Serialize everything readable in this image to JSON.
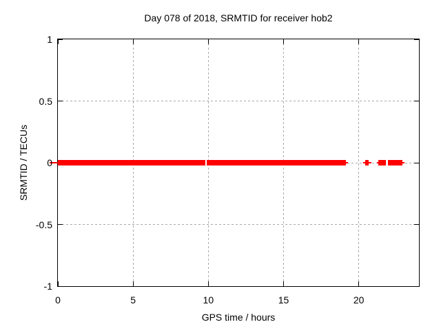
{
  "chart_data": {
    "type": "scatter",
    "title": "Day 078 of 2018, SRMTID for receiver hob2",
    "xlabel": "GPS time / hours",
    "ylabel": "SRMTID / TECUs",
    "xlim": [
      0,
      24
    ],
    "ylim": [
      -1,
      1
    ],
    "x_ticks": [
      {
        "value": 0,
        "label": "0"
      },
      {
        "value": 5,
        "label": "5"
      },
      {
        "value": 10,
        "label": "10"
      },
      {
        "value": 15,
        "label": "15"
      },
      {
        "value": 20,
        "label": "20"
      }
    ],
    "y_ticks": [
      {
        "value": 1,
        "label": "1"
      },
      {
        "value": 0.5,
        "label": "0.5"
      },
      {
        "value": 0,
        "label": "0"
      },
      {
        "value": -0.5,
        "label": "-0.5"
      },
      {
        "value": -1,
        "label": "-1"
      }
    ],
    "grid": true,
    "legend": "none",
    "series_value_tecus": 0,
    "colors": {
      "marker": "#ff0000",
      "grid": "#a8a8a8",
      "axis": "#000000",
      "background": "#ffffff"
    },
    "segments": [
      {
        "kind": "whisker",
        "x0": -0.55,
        "x1": 0
      },
      {
        "kind": "block",
        "x0": 0,
        "x1": 9.82
      },
      {
        "kind": "block",
        "x0": 9.89,
        "x1": 19.16
      },
      {
        "kind": "whisker",
        "x0": 19.16,
        "x1": 19.3
      },
      {
        "kind": "whisker",
        "x0": 20.3,
        "x1": 20.82
      },
      {
        "kind": "block",
        "x0": 20.43,
        "x1": 20.66
      },
      {
        "kind": "whisker",
        "x0": 21.19,
        "x1": 21.31
      },
      {
        "kind": "block",
        "x0": 21.31,
        "x1": 21.8
      },
      {
        "kind": "block",
        "x0": 21.93,
        "x1": 22.9
      },
      {
        "kind": "whisker",
        "x0": 22.9,
        "x1": 23.02
      }
    ],
    "segments_y": 0
  }
}
